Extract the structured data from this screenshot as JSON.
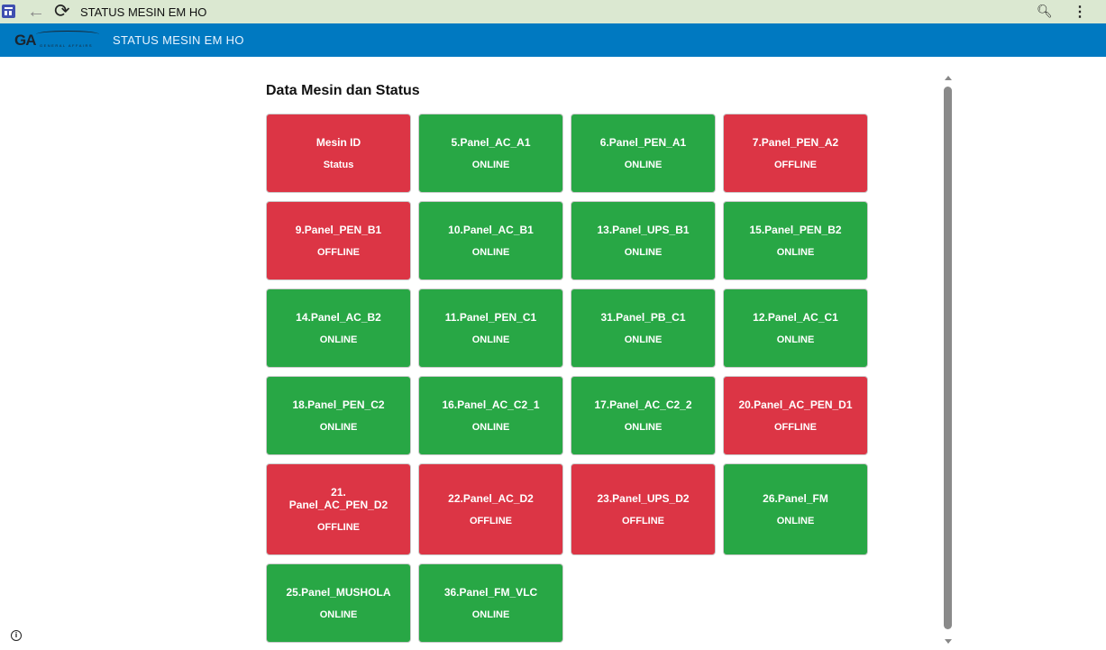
{
  "browser": {
    "title": "STATUS MESIN EM HO"
  },
  "header": {
    "logo": "GA",
    "logo_sub": "GENERAL AFFAIRS",
    "title": "STATUS MESIN EM HO"
  },
  "main": {
    "heading": "Data Mesin dan Status"
  },
  "colors": {
    "online": "#28a745",
    "offline": "#dc3545"
  },
  "cards": [
    {
      "id": "Mesin ID",
      "status": "Status",
      "color": "offline"
    },
    {
      "id": "5.Panel_AC_A1",
      "status": "ONLINE"
    },
    {
      "id": "6.Panel_PEN_A1",
      "status": "ONLINE"
    },
    {
      "id": "7.Panel_PEN_A2",
      "status": "OFFLINE"
    },
    {
      "id": "9.Panel_PEN_B1",
      "status": "OFFLINE"
    },
    {
      "id": "10.Panel_AC_B1",
      "status": "ONLINE"
    },
    {
      "id": "13.Panel_UPS_B1",
      "status": "ONLINE"
    },
    {
      "id": "15.Panel_PEN_B2",
      "status": "ONLINE"
    },
    {
      "id": "14.Panel_AC_B2",
      "status": "ONLINE"
    },
    {
      "id": "11.Panel_PEN_C1",
      "status": "ONLINE"
    },
    {
      "id": "31.Panel_PB_C1",
      "status": "ONLINE"
    },
    {
      "id": "12.Panel_AC_C1",
      "status": "ONLINE"
    },
    {
      "id": "18.Panel_PEN_C2",
      "status": "ONLINE"
    },
    {
      "id": "16.Panel_AC_C2_1",
      "status": "ONLINE"
    },
    {
      "id": "17.Panel_AC_C2_2",
      "status": "ONLINE"
    },
    {
      "id": "20.Panel_AC_PEN_D1",
      "status": "OFFLINE"
    },
    {
      "id": "21. Panel_AC_PEN_D2",
      "status": "OFFLINE"
    },
    {
      "id": "22.Panel_AC_D2",
      "status": "OFFLINE"
    },
    {
      "id": "23.Panel_UPS_D2",
      "status": "OFFLINE"
    },
    {
      "id": "26.Panel_FM",
      "status": "ONLINE"
    },
    {
      "id": "25.Panel_MUSHOLA",
      "status": "ONLINE"
    },
    {
      "id": "36.Panel_FM_VLC",
      "status": "ONLINE"
    }
  ]
}
